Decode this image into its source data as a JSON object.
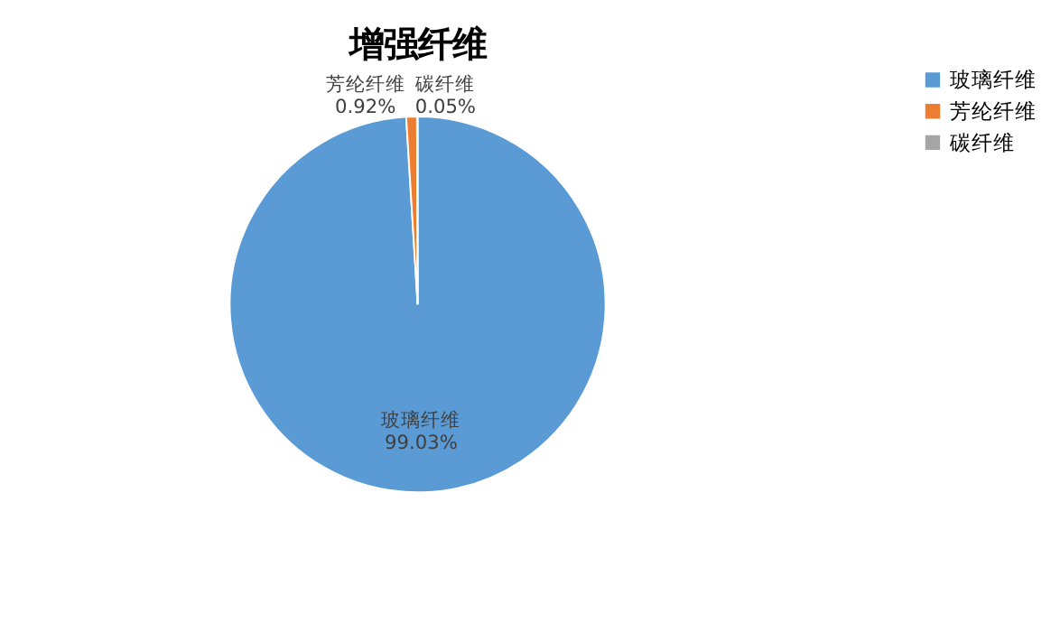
{
  "chart_data": {
    "type": "pie",
    "title": "增强纤维",
    "categories": [
      "玻璃纤维",
      "芳纶纤维",
      "碳纤维"
    ],
    "values": [
      99.03,
      0.92,
      0.05
    ],
    "colors": [
      "#5b9bd5",
      "#ed7d31",
      "#a5a5a5"
    ],
    "value_labels": [
      "99.03%",
      "0.92%",
      "0.05%"
    ],
    "legend": "right"
  }
}
